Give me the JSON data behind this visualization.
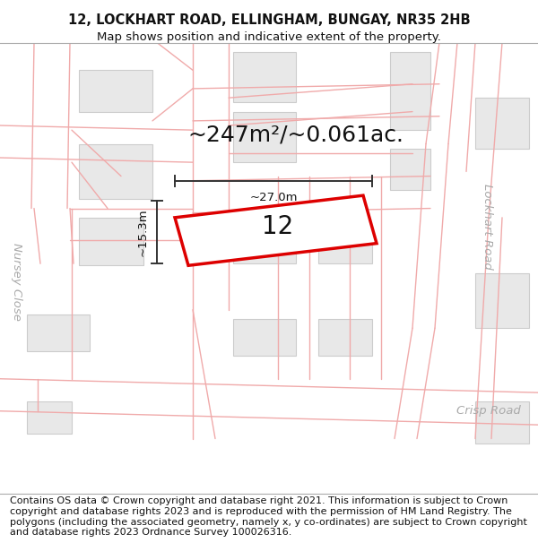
{
  "title_line1": "12, LOCKHART ROAD, ELLINGHAM, BUNGAY, NR35 2HB",
  "title_line2": "Map shows position and indicative extent of the property.",
  "footer_text": "Contains OS data © Crown copyright and database right 2021. This information is subject to Crown copyright and database rights 2023 and is reproduced with the permission of HM Land Registry. The polygons (including the associated geometry, namely x, y co-ordinates) are subject to Crown copyright and database rights 2023 Ordnance Survey 100026316.",
  "area_label": "~247m²/~0.061ac.",
  "property_number": "12",
  "width_label": "~27.0m",
  "height_label": "~15.3m",
  "road_label_lockhart": "Lockhart Road",
  "road_label_crisp": "Crisp Road",
  "road_label_nursey": "Nursey Close",
  "bg_color": "#ffffff",
  "map_bg": "#ffffff",
  "building_fill": "#e8e8e8",
  "building_stroke": "#cccccc",
  "road_line_color": "#f0aaaa",
  "red_polygon_color": "#dd0000",
  "dim_line_color": "#333333",
  "title_fontsize": 10.5,
  "subtitle_fontsize": 9.5,
  "footer_fontsize": 8.0,
  "area_fontsize": 18,
  "number_fontsize": 20,
  "dim_fontsize": 9.5,
  "road_fontsize": 9.5
}
